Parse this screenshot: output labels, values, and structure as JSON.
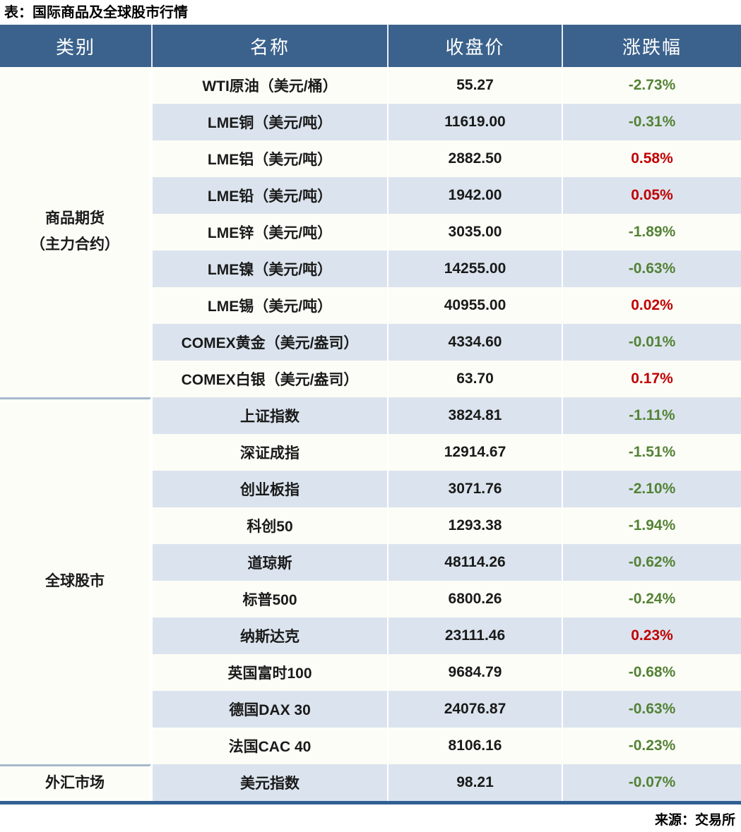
{
  "title": "表：国际商品及全球股市行情",
  "source": "来源：交易所",
  "colors": {
    "header_bg": "#3b628c",
    "stripe_blue": "#dbe4ee",
    "stripe_white": "#fdfdf7",
    "up_red": "#c00000",
    "down_green": "#548235",
    "bottom_rule_blue": "#315f93",
    "group_separator": "#a6b9cd"
  },
  "table": {
    "headers": [
      "类别",
      "名称",
      "收盘价",
      "涨跌幅"
    ],
    "groups": [
      {
        "category": "商品期货\n（主力合约）",
        "rows": [
          {
            "name": "WTI原油（美元/桶）",
            "close": "55.27",
            "change": "-2.73%",
            "direction": "down"
          },
          {
            "name": "LME铜（美元/吨）",
            "close": "11619.00",
            "change": "-0.31%",
            "direction": "down"
          },
          {
            "name": "LME铝（美元/吨）",
            "close": "2882.50",
            "change": "0.58%",
            "direction": "up"
          },
          {
            "name": "LME铅（美元/吨）",
            "close": "1942.00",
            "change": "0.05%",
            "direction": "up"
          },
          {
            "name": "LME锌（美元/吨）",
            "close": "3035.00",
            "change": "-1.89%",
            "direction": "down"
          },
          {
            "name": "LME镍（美元/吨）",
            "close": "14255.00",
            "change": "-0.63%",
            "direction": "down"
          },
          {
            "name": "LME锡（美元/吨）",
            "close": "40955.00",
            "change": "0.02%",
            "direction": "up"
          },
          {
            "name": "COMEX黄金（美元/盎司）",
            "close": "4334.60",
            "change": "-0.01%",
            "direction": "down"
          },
          {
            "name": "COMEX白银（美元/盎司）",
            "close": "63.70",
            "change": "0.17%",
            "direction": "up"
          }
        ]
      },
      {
        "category": "全球股市",
        "rows": [
          {
            "name": "上证指数",
            "close": "3824.81",
            "change": "-1.11%",
            "direction": "down"
          },
          {
            "name": "深证成指",
            "close": "12914.67",
            "change": "-1.51%",
            "direction": "down"
          },
          {
            "name": "创业板指",
            "close": "3071.76",
            "change": "-2.10%",
            "direction": "down"
          },
          {
            "name": "科创50",
            "close": "1293.38",
            "change": "-1.94%",
            "direction": "down"
          },
          {
            "name": "道琼斯",
            "close": "48114.26",
            "change": "-0.62%",
            "direction": "down"
          },
          {
            "name": "标普500",
            "close": "6800.26",
            "change": "-0.24%",
            "direction": "down"
          },
          {
            "name": "纳斯达克",
            "close": "23111.46",
            "change": "0.23%",
            "direction": "up"
          },
          {
            "name": "英国富时100",
            "close": "9684.79",
            "change": "-0.68%",
            "direction": "down"
          },
          {
            "name": "德国DAX 30",
            "close": "24076.87",
            "change": "-0.63%",
            "direction": "down"
          },
          {
            "name": "法国CAC 40",
            "close": "8106.16",
            "change": "-0.23%",
            "direction": "down"
          }
        ]
      },
      {
        "category": "外汇市场",
        "rows": [
          {
            "name": "美元指数",
            "close": "98.21",
            "change": "-0.07%",
            "direction": "down"
          }
        ]
      }
    ]
  },
  "chart_data": {
    "type": "table",
    "title": "表：国际商品及全球股市行情",
    "columns": [
      "类别",
      "名称",
      "收盘价",
      "涨跌幅"
    ],
    "rows": [
      [
        "商品期货（主力合约）",
        "WTI原油（美元/桶）",
        55.27,
        "-2.73%"
      ],
      [
        "商品期货（主力合约）",
        "LME铜（美元/吨）",
        11619.0,
        "-0.31%"
      ],
      [
        "商品期货（主力合约）",
        "LME铝（美元/吨）",
        2882.5,
        "0.58%"
      ],
      [
        "商品期货（主力合约）",
        "LME铅（美元/吨）",
        1942.0,
        "0.05%"
      ],
      [
        "商品期货（主力合约）",
        "LME锌（美元/吨）",
        3035.0,
        "-1.89%"
      ],
      [
        "商品期货（主力合约）",
        "LME镍（美元/吨）",
        14255.0,
        "-0.63%"
      ],
      [
        "商品期货（主力合约）",
        "LME锡（美元/吨）",
        40955.0,
        "0.02%"
      ],
      [
        "商品期货（主力合约）",
        "COMEX黄金（美元/盎司）",
        4334.6,
        "-0.01%"
      ],
      [
        "商品期货（主力合约）",
        "COMEX白银（美元/盎司）",
        63.7,
        "0.17%"
      ],
      [
        "全球股市",
        "上证指数",
        3824.81,
        "-1.11%"
      ],
      [
        "全球股市",
        "深证成指",
        12914.67,
        "-1.51%"
      ],
      [
        "全球股市",
        "创业板指",
        3071.76,
        "-2.10%"
      ],
      [
        "全球股市",
        "科创50",
        1293.38,
        "-1.94%"
      ],
      [
        "全球股市",
        "道琼斯",
        48114.26,
        "-0.62%"
      ],
      [
        "全球股市",
        "标普500",
        6800.26,
        "-0.24%"
      ],
      [
        "全球股市",
        "纳斯达克",
        23111.46,
        "0.23%"
      ],
      [
        "全球股市",
        "英国富时100",
        9684.79,
        "-0.68%"
      ],
      [
        "全球股市",
        "德国DAX 30",
        24076.87,
        "-0.63%"
      ],
      [
        "全球股市",
        "法国CAC 40",
        8106.16,
        "-0.23%"
      ],
      [
        "外汇市场",
        "美元指数",
        98.21,
        "-0.07%"
      ]
    ],
    "notes": "红色=上涨(red=up), 绿色=下跌(green=down); 来源：交易所"
  }
}
